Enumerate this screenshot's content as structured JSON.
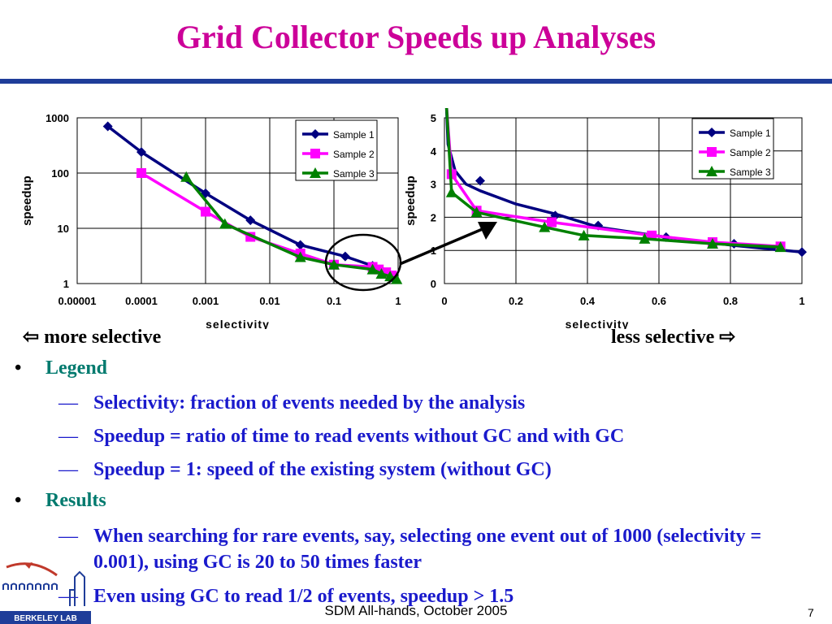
{
  "slide": {
    "title": "Grid Collector Speeds up Analyses",
    "more_selective": "⇦ more selective",
    "less_selective": "less selective ⇨",
    "footer": "SDM All-hands, October 2005",
    "page_number": "7",
    "logo_text": "BERKELEY LAB",
    "colors": {
      "title": "#cc0099",
      "rule": "#1f3d99",
      "bullet_heading": "#007a6e",
      "bullet_text": "#1a1acc"
    }
  },
  "bullets": [
    {
      "level": 1,
      "text": "Legend"
    },
    {
      "level": 2,
      "text": "Selectivity: fraction of events needed by the analysis"
    },
    {
      "level": 2,
      "text": "Speedup = ratio of time to read events without GC and with GC"
    },
    {
      "level": 2,
      "text": "Speedup = 1: speed of the existing system (without GC)"
    },
    {
      "level": 1,
      "text": "Results"
    },
    {
      "level": 2,
      "text": "When searching for rare events, say, selecting one event out of 1000 (selectivity = 0.001), using GC is 20 to 50 times faster"
    },
    {
      "level": 2,
      "text": "Even using GC to read 1/2 of events, speedup > 1.5"
    }
  ],
  "chart_data": [
    {
      "type": "line",
      "xscale": "log",
      "yscale": "log",
      "xlabel": "selectivity",
      "ylabel": "speedup",
      "xlim": [
        1e-05,
        1
      ],
      "ylim": [
        1,
        1000
      ],
      "xticks": [
        "0.00001",
        "0.0001",
        "0.001",
        "0.01",
        "0.1",
        "1"
      ],
      "yticks": [
        "1",
        "10",
        "100",
        "1000"
      ],
      "grid": true,
      "legend": "top-right",
      "series": [
        {
          "name": "Sample 1",
          "color": "#000080",
          "marker": "diamond",
          "x": [
            3e-05,
            0.0001,
            0.001,
            0.005,
            0.03,
            0.15,
            0.4,
            0.6,
            0.8
          ],
          "y": [
            700,
            240,
            43,
            14,
            5,
            3.1,
            2.1,
            1.6,
            1.3
          ]
        },
        {
          "name": "Sample 2",
          "color": "#ff00ff",
          "marker": "square",
          "x": [
            0.0001,
            0.001,
            0.005,
            0.03,
            0.1,
            0.4,
            0.5,
            0.65,
            0.8
          ],
          "y": [
            100,
            20,
            7,
            3.5,
            2.2,
            2.0,
            1.8,
            1.6,
            1.4
          ]
        },
        {
          "name": "Sample 3",
          "color": "#008000",
          "marker": "triangle",
          "x": [
            0.0005,
            0.002,
            0.03,
            0.1,
            0.4,
            0.55,
            0.75,
            0.95
          ],
          "y": [
            85,
            12,
            3,
            2.2,
            1.8,
            1.5,
            1.35,
            1.2
          ]
        }
      ]
    },
    {
      "type": "line",
      "xlabel": "selectivity",
      "ylabel": "speedup",
      "xlim": [
        0,
        1
      ],
      "ylim": [
        0,
        5
      ],
      "xticks": [
        "0",
        "0.2",
        "0.4",
        "0.6",
        "0.8",
        "1"
      ],
      "yticks": [
        "0",
        "1",
        "2",
        "3",
        "4",
        "5"
      ],
      "grid": true,
      "legend": "top-right",
      "series": [
        {
          "name": "Sample 1",
          "color": "#000080",
          "marker": "diamond",
          "x": [
            0.005,
            0.01,
            0.03,
            0.06,
            0.1,
            0.2,
            0.31,
            0.43,
            0.62,
            0.81,
            1.0
          ],
          "y": [
            5.5,
            4.2,
            3.4,
            3.0,
            2.8,
            2.4,
            2.1,
            1.7,
            1.4,
            1.15,
            0.95
          ],
          "markers_x": [
            0.1,
            0.31,
            0.43,
            0.62,
            0.81,
            1.0
          ],
          "markers_y": [
            3.1,
            2.05,
            1.75,
            1.4,
            1.2,
            0.95
          ]
        },
        {
          "name": "Sample 2",
          "color": "#ff00ff",
          "marker": "square",
          "x": [
            0.005,
            0.02,
            0.09,
            0.3,
            0.58,
            0.75,
            0.94
          ],
          "y": [
            5.5,
            3.3,
            2.2,
            1.85,
            1.45,
            1.25,
            1.12
          ],
          "markers_x": [
            0.02,
            0.09,
            0.3,
            0.58,
            0.75,
            0.94
          ],
          "markers_y": [
            3.3,
            2.2,
            1.85,
            1.45,
            1.25,
            1.12
          ]
        },
        {
          "name": "Sample 3",
          "color": "#008000",
          "marker": "triangle",
          "x": [
            0.005,
            0.02,
            0.09,
            0.28,
            0.39,
            0.56,
            0.75,
            0.94
          ],
          "y": [
            5.5,
            2.75,
            2.15,
            1.7,
            1.45,
            1.35,
            1.2,
            1.1
          ],
          "markers_x": [
            0.02,
            0.09,
            0.28,
            0.39,
            0.56,
            0.75,
            0.94
          ],
          "markers_y": [
            2.75,
            2.15,
            1.7,
            1.45,
            1.35,
            1.2,
            1.1
          ]
        }
      ]
    }
  ]
}
